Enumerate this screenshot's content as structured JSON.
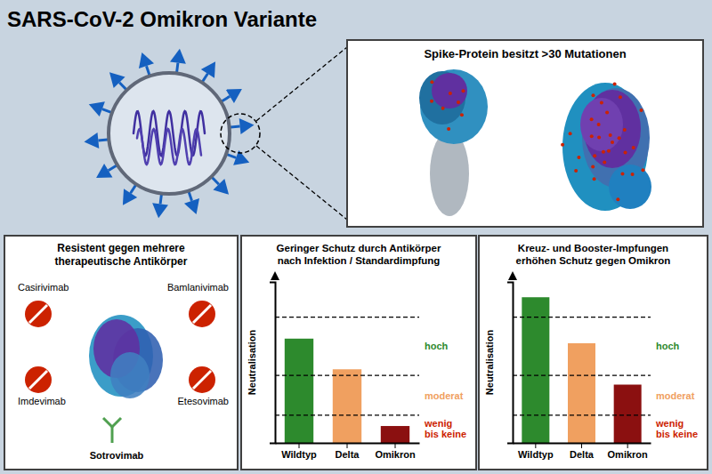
{
  "title": "SARS-CoV-2 Omikron Variante",
  "background": "#c8d4e0",
  "panels": [
    {
      "title": "Spike-Protein besitzt >30 Mutationen"
    },
    {
      "title": "Resistent gegen mehrere\ntherapeutische Antikörper",
      "labels": [
        "Casirivimab",
        "Bamlanivimab",
        "Imdevimab",
        "Etesovimab",
        "Sotrovimab"
      ]
    }
  ],
  "chart_data": [
    {
      "type": "bar",
      "title": "Geringer Schutz durch Antikörper\nnach Infektion / Standardimpfung",
      "categories": [
        "Wildtyp",
        "Delta",
        "Omikron"
      ],
      "values": [
        0.68,
        0.48,
        0.11
      ],
      "colors": [
        "#2d8a2d",
        "#f0a060",
        "#8b1010"
      ],
      "ylabel": "Neutralisation",
      "ylim": [
        0,
        1.05
      ],
      "yticks": [],
      "tick_labels": "x",
      "grid": false,
      "hlines": [
        0.82,
        0.44,
        0.18
      ],
      "annotations": [
        {
          "text": "hoch",
          "color": "#2d8a2d"
        },
        {
          "text": "moderat",
          "color": "#f0a060"
        },
        {
          "text": "wenig\nbis keine",
          "color": "#cc2200"
        }
      ]
    },
    {
      "type": "bar",
      "title": "Kreuz- und Booster-Impfungen\nerhöhen Schutz gegen Omikron",
      "categories": [
        "Wildtyp",
        "Delta",
        "Omikron"
      ],
      "values": [
        0.95,
        0.65,
        0.38
      ],
      "colors": [
        "#2d8a2d",
        "#f0a060",
        "#8b1010"
      ],
      "ylabel": "Neutralisation",
      "ylim": [
        0,
        1.05
      ],
      "yticks": [],
      "tick_labels": "x",
      "grid": false,
      "hlines": [
        0.82,
        0.44,
        0.18
      ],
      "annotations": [
        {
          "text": "hoch",
          "color": "#2d8a2d"
        },
        {
          "text": "moderat",
          "color": "#f0a060"
        },
        {
          "text": "wenig\nbis keine",
          "color": "#cc2200"
        }
      ]
    }
  ]
}
